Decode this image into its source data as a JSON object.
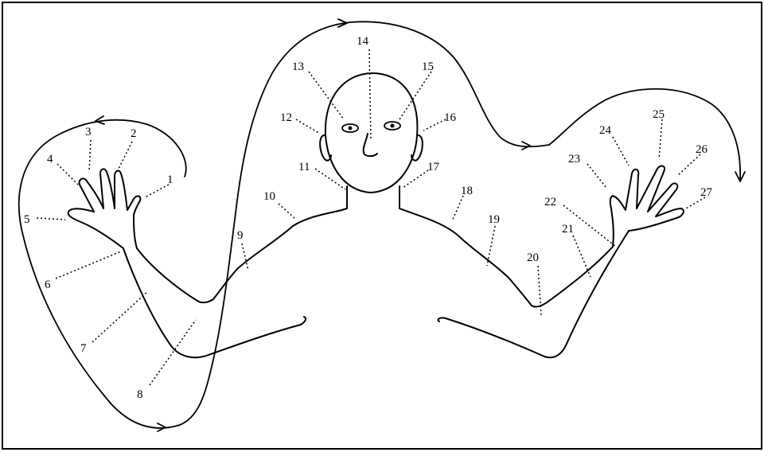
{
  "points": [
    {
      "id": 1,
      "label": "1"
    },
    {
      "id": 2,
      "label": "2"
    },
    {
      "id": 3,
      "label": "3"
    },
    {
      "id": 4,
      "label": "4"
    },
    {
      "id": 5,
      "label": "5"
    },
    {
      "id": 6,
      "label": "6"
    },
    {
      "id": 7,
      "label": "7"
    },
    {
      "id": 8,
      "label": "8"
    },
    {
      "id": 9,
      "label": "9"
    },
    {
      "id": 10,
      "label": "10"
    },
    {
      "id": 11,
      "label": "11"
    },
    {
      "id": 12,
      "label": "12"
    },
    {
      "id": 13,
      "label": "13"
    },
    {
      "id": 14,
      "label": "14"
    },
    {
      "id": 15,
      "label": "15"
    },
    {
      "id": 16,
      "label": "16"
    },
    {
      "id": 17,
      "label": "17"
    },
    {
      "id": 18,
      "label": "18"
    },
    {
      "id": 19,
      "label": "19"
    },
    {
      "id": 20,
      "label": "20"
    },
    {
      "id": 21,
      "label": "21"
    },
    {
      "id": 22,
      "label": "22"
    },
    {
      "id": 23,
      "label": "23"
    },
    {
      "id": 24,
      "label": "24"
    },
    {
      "id": 25,
      "label": "25"
    },
    {
      "id": 26,
      "label": "26"
    },
    {
      "id": 27,
      "label": "27"
    }
  ]
}
